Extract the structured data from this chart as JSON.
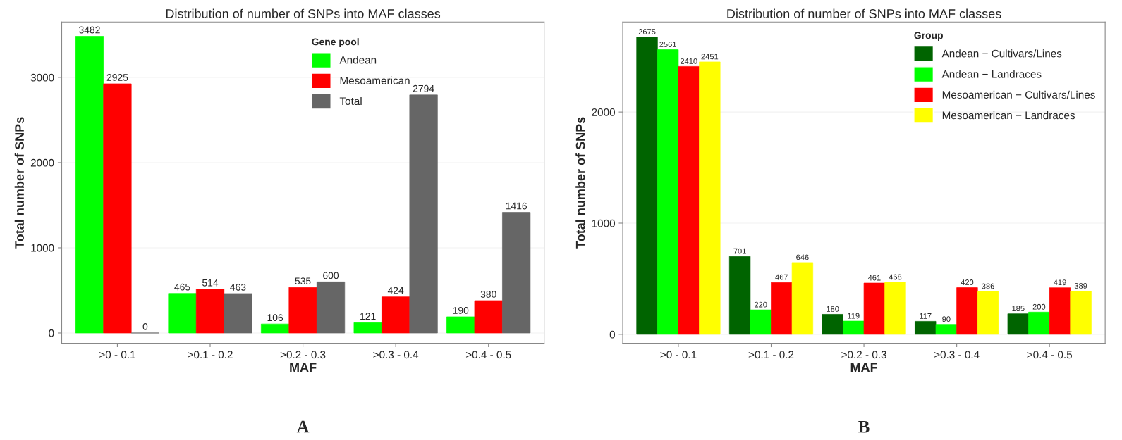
{
  "chart_data": [
    {
      "type": "bar",
      "title": "Distribution of number of SNPs into MAF classes",
      "xlabel": "MAF",
      "ylabel": "Total number of SNPs",
      "legend_title": "Gene pool",
      "categories": [
        ">0 - 0.1",
        ">0.1 - 0.2",
        ">0.2 - 0.3",
        ">0.3 - 0.4",
        ">0.4 - 0.5"
      ],
      "series": [
        {
          "name": "Andean",
          "color": "#00ff00",
          "values": [
            3482,
            465,
            106,
            121,
            190
          ]
        },
        {
          "name": "Mesoamerican",
          "color": "#ff0000",
          "values": [
            2925,
            514,
            535,
            424,
            380
          ]
        },
        {
          "name": "Total",
          "color": "#666666",
          "values": [
            0,
            463,
            600,
            2794,
            1416
          ]
        }
      ],
      "ylim": [
        -120,
        3650
      ],
      "yticks": [
        0,
        1000,
        2000,
        3000
      ],
      "grid": "y",
      "legend": "top",
      "data_labels": true,
      "annotations": [
        "A"
      ]
    },
    {
      "type": "bar",
      "title": "Distribution of number of SNPs into MAF classes",
      "xlabel": "MAF",
      "ylabel": "Total number of SNPs",
      "legend_title": "Group",
      "categories": [
        ">0 - 0.1",
        ">0.1 - 0.2",
        ">0.2 - 0.3",
        ">0.3 - 0.4",
        ">0.4 - 0.5"
      ],
      "series": [
        {
          "name": "Andean − Cultivars/Lines",
          "color": "#006400",
          "values": [
            2675,
            701,
            180,
            117,
            185
          ]
        },
        {
          "name": "Andean − Landraces",
          "color": "#00ff00",
          "values": [
            2561,
            220,
            119,
            90,
            200
          ]
        },
        {
          "name": "Mesoamerican − Cultivars/Lines",
          "color": "#ff0000",
          "values": [
            2410,
            467,
            461,
            420,
            419
          ]
        },
        {
          "name": "Mesoamerican − Landraces",
          "color": "#ffff00",
          "values": [
            2451,
            646,
            468,
            386,
            389
          ]
        }
      ],
      "ylim": [
        -80,
        2810
      ],
      "yticks": [
        0,
        1000,
        2000
      ],
      "grid": "y",
      "legend": "top right",
      "data_labels": true,
      "annotations": [
        "B"
      ]
    }
  ]
}
